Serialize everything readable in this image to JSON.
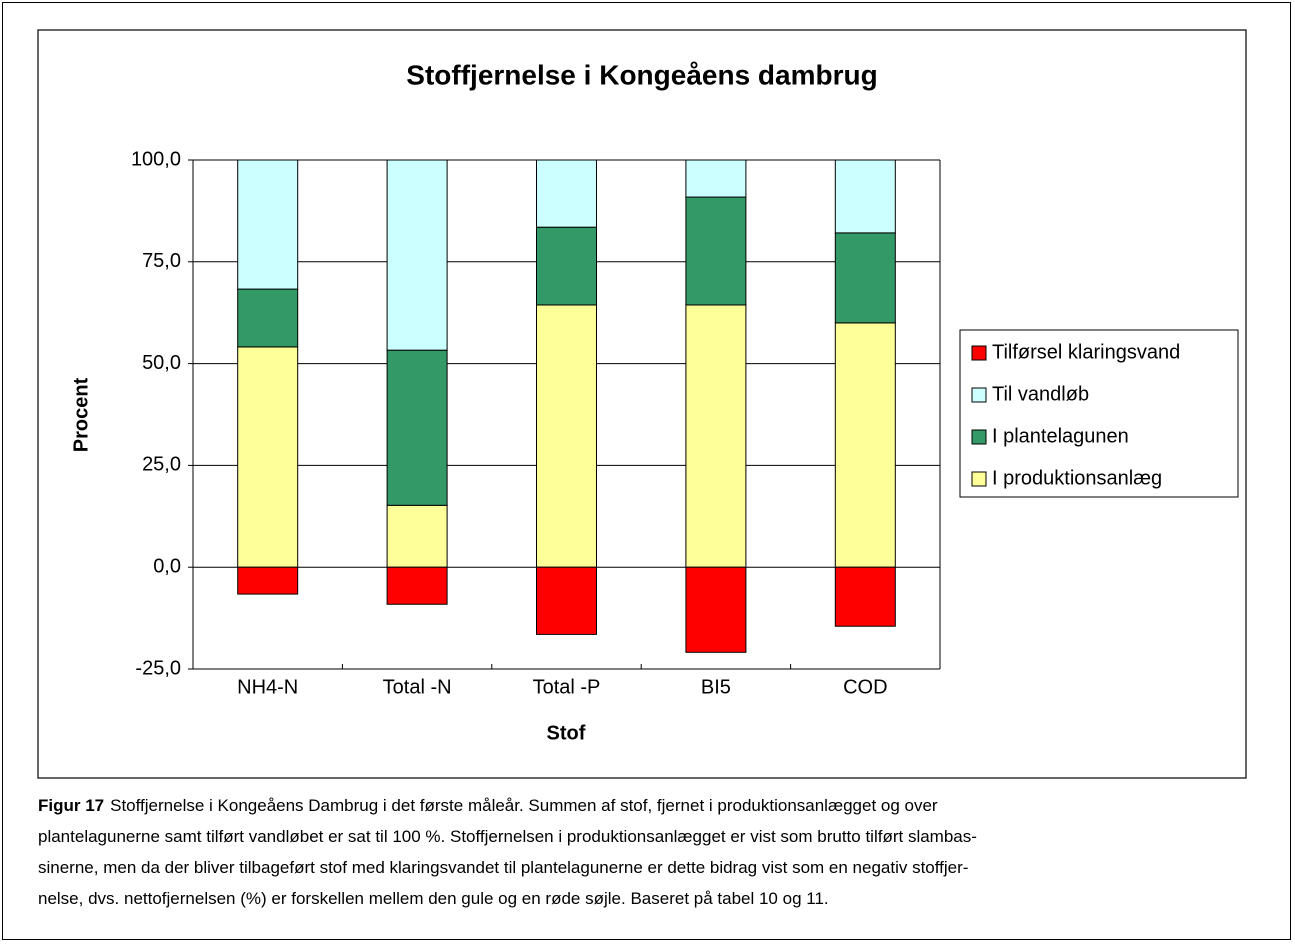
{
  "chart_data": {
    "type": "bar",
    "stacked": true,
    "title": "Stoffjernelse i Kongeåens dambrug",
    "x_label": "Stof",
    "y_label": "Procent",
    "categories": [
      "NH4-N",
      "Total -N",
      "Total -P",
      "BI5",
      "COD"
    ],
    "series": [
      {
        "name": "Tilførsel klaringsvand",
        "color": "#ff0000",
        "values": [
          -6.6,
          -9.1,
          -16.5,
          -20.9,
          -14.5
        ]
      },
      {
        "name": "Til vandløb",
        "color": "#ccffff",
        "values": [
          31.7,
          46.7,
          16.5,
          9.1,
          17.9
        ]
      },
      {
        "name": "I plantelagunen",
        "color": "#339966",
        "values": [
          14.2,
          38.1,
          19.1,
          26.5,
          22.1
        ]
      },
      {
        "name": "I produktionsanlæg",
        "color": "#ffff99",
        "values": [
          54.1,
          15.2,
          64.4,
          64.4,
          60.0
        ]
      }
    ],
    "ylim": [
      -25,
      100
    ],
    "yticks": [
      {
        "value": -25,
        "label": "-25,0"
      },
      {
        "value": 0,
        "label": "0,0"
      },
      {
        "value": 25,
        "label": "25,0"
      },
      {
        "value": 50,
        "label": "50,0"
      },
      {
        "value": 75,
        "label": "75,0"
      },
      {
        "value": 100,
        "label": "100,0"
      }
    ],
    "grid": true,
    "legend": "right"
  },
  "caption": {
    "label": "Figur 17",
    "lines": [
      "Stoffjernelse i Kongeåens Dambrug i det første måleår. Summen af stof, fjernet i produktionsanlægget og over",
      "plantelagunerne samt tilført vandløbet er sat til 100 %. Stoffjernelsen i produktionsanlægget er vist som brutto tilført slambas-",
      "sinerne, men da der bliver tilbageført stof med klaringsvandet til plantelagunerne er dette bidrag vist som en negativ stoffjer-",
      "nelse, dvs. nettofjernelsen (%) er forskellen mellem den gule og en røde søjle. Baseret på tabel 10 og 11."
    ]
  }
}
